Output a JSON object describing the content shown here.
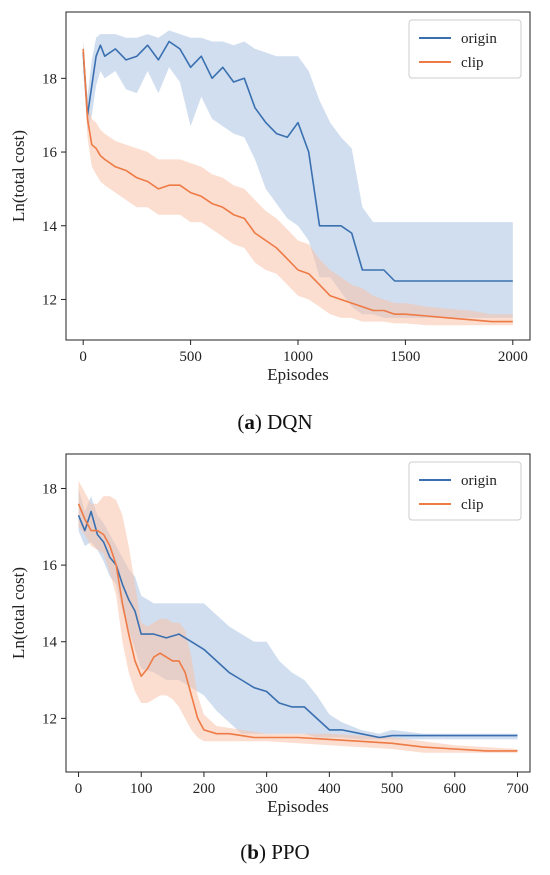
{
  "colors": {
    "origin": "#3a70b0",
    "clip": "#ee7a45",
    "origin_band": "#aac2e2",
    "clip_band": "#f8c3aa"
  },
  "chart_data": [
    {
      "type": "line",
      "caption_letter": "a",
      "caption_text": "DQN",
      "xlabel": "Episodes",
      "ylabel": "Ln(total cost)",
      "xlim": [
        -80,
        2080
      ],
      "ylim": [
        10.9,
        19.8
      ],
      "xticks": [
        0,
        500,
        1000,
        1500,
        2000
      ],
      "yticks": [
        12,
        14,
        16,
        18
      ],
      "legend_position": "top-right",
      "series": [
        {
          "name": "origin",
          "x": [
            0,
            20,
            40,
            60,
            80,
            100,
            150,
            200,
            250,
            300,
            350,
            400,
            450,
            500,
            550,
            600,
            650,
            700,
            750,
            800,
            850,
            900,
            950,
            1000,
            1050,
            1100,
            1150,
            1200,
            1250,
            1300,
            1350,
            1400,
            1450,
            1500,
            1600,
            1700,
            1800,
            1900,
            2000
          ],
          "y": [
            18.7,
            17.0,
            17.8,
            18.6,
            18.9,
            18.6,
            18.8,
            18.5,
            18.6,
            18.9,
            18.5,
            19.0,
            18.8,
            18.3,
            18.6,
            18.0,
            18.3,
            17.9,
            18.0,
            17.2,
            16.8,
            16.5,
            16.4,
            16.8,
            16.0,
            14.0,
            14.0,
            14.0,
            13.8,
            12.8,
            12.8,
            12.8,
            12.5,
            12.5,
            12.5,
            12.5,
            12.5,
            12.5,
            12.5
          ],
          "lower": [
            18.2,
            16.6,
            17.0,
            17.8,
            18.2,
            18.0,
            18.2,
            17.7,
            17.6,
            18.2,
            17.6,
            18.3,
            17.9,
            16.7,
            17.5,
            16.9,
            16.7,
            16.5,
            16.4,
            15.8,
            15.0,
            14.6,
            14.2,
            14.0,
            13.6,
            12.6,
            12.6,
            12.2,
            11.8,
            11.6,
            11.6,
            11.5,
            11.5,
            11.5,
            11.5,
            11.5,
            11.5,
            11.5,
            11.5
          ],
          "upper": [
            19.0,
            17.5,
            18.5,
            19.1,
            19.2,
            19.2,
            19.2,
            19.1,
            19.1,
            19.2,
            19.1,
            19.3,
            19.2,
            19.1,
            19.1,
            19.0,
            19.0,
            18.9,
            19.0,
            18.8,
            18.7,
            18.6,
            18.6,
            18.6,
            18.2,
            17.4,
            16.8,
            16.4,
            16.1,
            14.5,
            14.1,
            14.1,
            14.1,
            14.1,
            14.1,
            14.1,
            14.1,
            14.1,
            14.1
          ]
        },
        {
          "name": "clip",
          "x": [
            0,
            20,
            40,
            60,
            80,
            100,
            150,
            200,
            250,
            300,
            350,
            400,
            450,
            500,
            550,
            600,
            650,
            700,
            750,
            800,
            850,
            900,
            950,
            1000,
            1050,
            1100,
            1150,
            1200,
            1250,
            1300,
            1350,
            1400,
            1450,
            1500,
            1600,
            1700,
            1800,
            1900,
            2000
          ],
          "y": [
            18.8,
            16.9,
            16.2,
            16.1,
            15.9,
            15.8,
            15.6,
            15.5,
            15.3,
            15.2,
            15.0,
            15.1,
            15.1,
            14.9,
            14.8,
            14.6,
            14.5,
            14.3,
            14.2,
            13.8,
            13.6,
            13.4,
            13.1,
            12.8,
            12.7,
            12.4,
            12.1,
            12.0,
            11.9,
            11.8,
            11.7,
            11.7,
            11.6,
            11.6,
            11.55,
            11.5,
            11.45,
            11.4,
            11.4
          ],
          "lower": [
            18.5,
            16.4,
            15.6,
            15.4,
            15.2,
            15.1,
            14.9,
            14.7,
            14.5,
            14.5,
            14.3,
            14.3,
            14.3,
            14.1,
            14.1,
            13.9,
            13.7,
            13.5,
            13.4,
            13.0,
            12.8,
            12.7,
            12.4,
            12.1,
            12.0,
            11.8,
            11.6,
            11.5,
            11.5,
            11.4,
            11.4,
            11.4,
            11.35,
            11.35,
            11.3,
            11.3,
            11.3,
            11.3,
            11.3
          ],
          "upper": [
            19.0,
            17.4,
            16.9,
            16.8,
            16.6,
            16.5,
            16.3,
            16.2,
            16.1,
            16.0,
            15.8,
            15.8,
            15.8,
            15.7,
            15.6,
            15.4,
            15.3,
            15.1,
            15.0,
            14.7,
            14.4,
            14.2,
            13.9,
            13.6,
            13.5,
            13.1,
            12.8,
            12.6,
            12.4,
            12.3,
            12.1,
            12.0,
            11.9,
            11.9,
            11.8,
            11.75,
            11.7,
            11.6,
            11.6
          ]
        }
      ]
    },
    {
      "type": "line",
      "caption_letter": "b",
      "caption_text": "PPO",
      "xlabel": "Episodes",
      "ylabel": "Ln(total cost)",
      "xlim": [
        -20,
        720
      ],
      "ylim": [
        10.6,
        18.9
      ],
      "xticks": [
        0,
        100,
        200,
        300,
        400,
        500,
        600,
        700
      ],
      "yticks": [
        12,
        14,
        16,
        18
      ],
      "legend_position": "top-right",
      "series": [
        {
          "name": "origin",
          "x": [
            0,
            10,
            20,
            30,
            40,
            50,
            60,
            70,
            80,
            90,
            100,
            120,
            140,
            160,
            180,
            200,
            220,
            240,
            260,
            280,
            300,
            320,
            340,
            360,
            380,
            400,
            420,
            450,
            480,
            500,
            550,
            600,
            650,
            700
          ],
          "y": [
            17.3,
            16.9,
            17.4,
            16.8,
            16.6,
            16.2,
            16.0,
            15.5,
            15.1,
            14.8,
            14.2,
            14.2,
            14.1,
            14.2,
            14.0,
            13.8,
            13.5,
            13.2,
            13.0,
            12.8,
            12.7,
            12.4,
            12.3,
            12.3,
            12.0,
            11.7,
            11.7,
            11.6,
            11.5,
            11.55,
            11.55,
            11.55,
            11.55,
            11.55
          ],
          "lower": [
            16.9,
            16.5,
            16.6,
            16.4,
            16.1,
            15.7,
            15.5,
            14.8,
            14.3,
            13.8,
            13.3,
            13.2,
            13.0,
            13.0,
            12.8,
            12.6,
            12.2,
            11.9,
            11.6,
            11.6,
            11.6,
            11.6,
            11.6,
            11.6,
            11.5,
            11.5,
            11.5,
            11.45,
            11.45,
            11.45,
            11.45,
            11.45,
            11.45,
            11.45
          ],
          "upper": [
            18.0,
            17.4,
            17.8,
            17.3,
            17.1,
            16.8,
            16.5,
            16.2,
            15.9,
            15.7,
            15.2,
            15.0,
            15.0,
            15.0,
            15.0,
            15.0,
            14.7,
            14.4,
            14.2,
            14.0,
            14.0,
            13.5,
            13.2,
            13.0,
            12.6,
            12.1,
            11.9,
            11.7,
            11.6,
            11.7,
            11.6,
            11.6,
            11.6,
            11.6
          ]
        },
        {
          "name": "clip",
          "x": [
            0,
            10,
            20,
            30,
            40,
            50,
            60,
            70,
            80,
            90,
            100,
            110,
            120,
            130,
            140,
            150,
            160,
            170,
            180,
            190,
            200,
            220,
            240,
            260,
            280,
            300,
            350,
            400,
            450,
            500,
            550,
            600,
            650,
            700
          ],
          "y": [
            17.6,
            17.2,
            16.9,
            16.9,
            16.8,
            16.5,
            16.0,
            15.0,
            14.2,
            13.5,
            13.1,
            13.3,
            13.6,
            13.7,
            13.6,
            13.5,
            13.5,
            13.2,
            12.6,
            12.0,
            11.7,
            11.6,
            11.6,
            11.55,
            11.5,
            11.5,
            11.5,
            11.45,
            11.4,
            11.35,
            11.25,
            11.2,
            11.15,
            11.15
          ],
          "lower": [
            17.0,
            16.8,
            16.5,
            16.4,
            16.3,
            15.8,
            15.2,
            14.0,
            13.2,
            12.7,
            12.4,
            12.4,
            12.5,
            12.6,
            12.6,
            12.5,
            12.3,
            12.0,
            11.7,
            11.5,
            11.4,
            11.4,
            11.4,
            11.4,
            11.4,
            11.4,
            11.35,
            11.3,
            11.25,
            11.2,
            11.1,
            11.1,
            11.1,
            11.1
          ],
          "upper": [
            18.2,
            17.9,
            17.6,
            17.6,
            17.8,
            17.8,
            17.7,
            17.3,
            16.5,
            15.5,
            14.5,
            14.4,
            14.5,
            14.6,
            14.6,
            14.5,
            14.5,
            14.3,
            13.6,
            12.6,
            12.1,
            11.8,
            11.75,
            11.7,
            11.65,
            11.6,
            11.6,
            11.6,
            11.55,
            11.5,
            11.4,
            11.3,
            11.25,
            11.2
          ]
        }
      ]
    }
  ]
}
